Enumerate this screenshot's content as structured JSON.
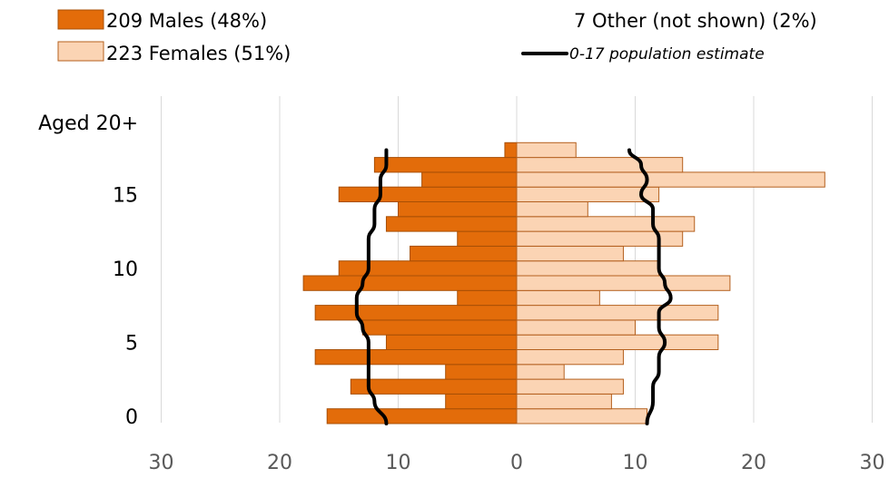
{
  "chart_data": {
    "type": "bar",
    "orientation": "horizontal",
    "layout": "population-pyramid",
    "colors": {
      "males": "#E36C0A",
      "males_border": "#A84F05",
      "females": "#FBD4B4",
      "females_border": "#B4601E",
      "estimate_line": "#000000",
      "grid": "#D9D9D9"
    },
    "legend": {
      "males": "209 Males (48%)",
      "females": "223 Females (51%)",
      "other": "7 Other (not shown) (2%)",
      "estimate": "0-17 population estimate",
      "placement": "top"
    },
    "x_ticks": [
      "30",
      "20",
      "10",
      "0",
      "10",
      "20",
      "30"
    ],
    "xlim": [
      -30,
      30
    ],
    "y_tick_labels": [
      {
        "age": 0,
        "label": "0"
      },
      {
        "age": 5,
        "label": "5"
      },
      {
        "age": 10,
        "label": "10"
      },
      {
        "age": 15,
        "label": "15"
      },
      {
        "age": 20,
        "label": "Aged 20+"
      }
    ],
    "ages": [
      0,
      1,
      2,
      3,
      4,
      5,
      6,
      7,
      8,
      9,
      10,
      11,
      12,
      13,
      14,
      15,
      16,
      17,
      18
    ],
    "series": [
      {
        "name": "209 Males (48%)",
        "values": [
          16,
          6,
          14,
          6,
          17,
          11,
          13,
          17,
          5,
          18,
          15,
          9,
          5,
          11,
          10,
          15,
          8,
          12,
          1
        ]
      },
      {
        "name": "223 Females (51%)",
        "values": [
          11,
          8,
          9,
          4,
          9,
          17,
          10,
          17,
          7,
          18,
          12,
          9,
          14,
          15,
          6,
          12,
          26,
          14,
          5
        ]
      }
    ],
    "estimate_lines": {
      "males": [
        11,
        12,
        12.5,
        12.5,
        12.5,
        12.5,
        13,
        13.5,
        13.5,
        13,
        12.5,
        12.5,
        12.5,
        12,
        12,
        11.5,
        11.5,
        11,
        11
      ],
      "females": [
        11,
        11.5,
        11.5,
        12,
        12,
        12.5,
        12,
        12,
        13,
        12.5,
        12,
        12,
        12,
        11.5,
        11.5,
        10.5,
        11,
        10.5,
        9.5
      ]
    },
    "grid": true
  }
}
